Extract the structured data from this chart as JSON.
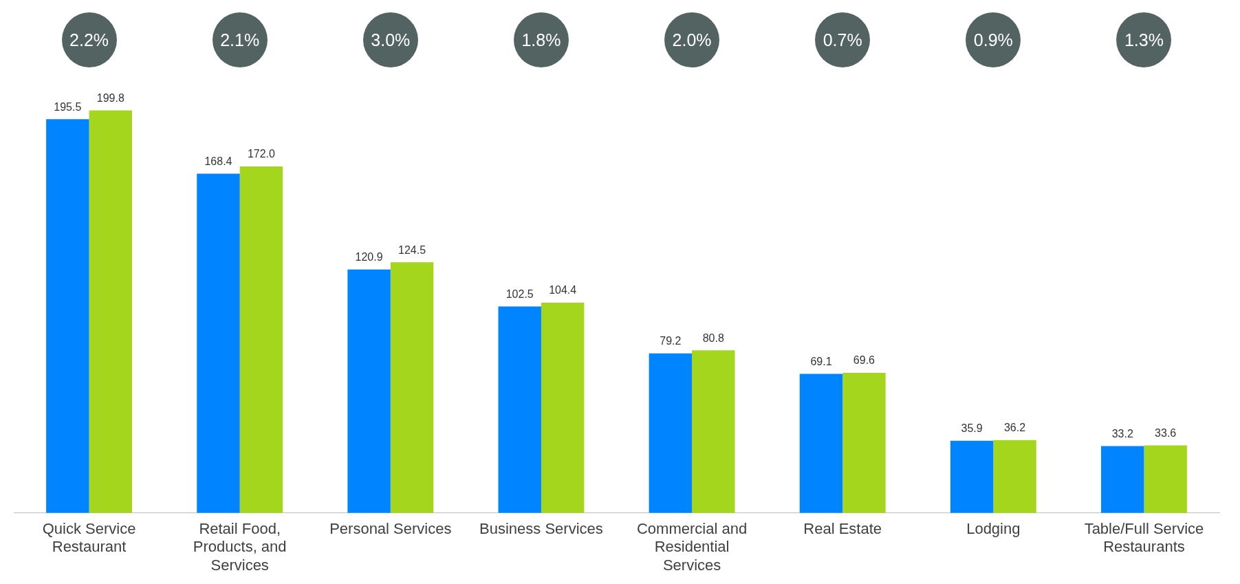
{
  "chart_data": {
    "type": "bar",
    "categories": [
      "Quick Service Restaurant",
      "Retail Food, Products, and Services",
      "Personal Services",
      "Business Services",
      "Commercial and Residential Services",
      "Real Estate",
      "Lodging",
      "Table/Full Service Restaurants"
    ],
    "series": [
      {
        "color": "#0084ff",
        "values": [
          195.5,
          168.4,
          120.9,
          102.5,
          79.2,
          69.1,
          35.9,
          33.2
        ],
        "value_labels": [
          "195.5",
          "168.4",
          "120.9",
          "102.5",
          "79.2",
          "69.1",
          "35.9",
          "33.2"
        ]
      },
      {
        "color": "#a5d61e",
        "values": [
          199.8,
          172.0,
          124.5,
          104.4,
          80.8,
          69.6,
          36.2,
          33.6
        ],
        "value_labels": [
          "199.8",
          "172.0",
          "124.5",
          "104.4",
          "80.8",
          "69.6",
          "36.2",
          "33.6"
        ]
      }
    ],
    "annotations": [
      "2.2%",
      "2.1%",
      "3.0%",
      "1.8%",
      "2.0%",
      "0.7%",
      "0.9%",
      "1.3%"
    ],
    "grid": false,
    "legend": false
  }
}
